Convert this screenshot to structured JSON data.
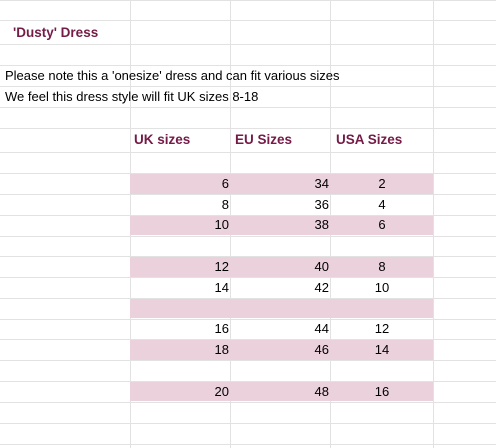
{
  "title": "'Dusty' Dress",
  "notes": [
    "Please note this a 'onesize' dress and can fit various sizes",
    "We feel this dress style will fit UK sizes 8-18"
  ],
  "headers": {
    "uk": "UK sizes",
    "eu": "EU Sizes",
    "usa": "USA Sizes"
  },
  "rows": [
    {
      "uk": "6",
      "eu": "34",
      "usa": "2"
    },
    {
      "uk": "8",
      "eu": "36",
      "usa": "4"
    },
    {
      "uk": "10",
      "eu": "38",
      "usa": "6"
    },
    {
      "uk": "12",
      "eu": "40",
      "usa": "8"
    },
    {
      "uk": "14",
      "eu": "42",
      "usa": "10"
    },
    {
      "uk": "16",
      "eu": "44",
      "usa": "12"
    },
    {
      "uk": "18",
      "eu": "46",
      "usa": "14"
    },
    {
      "uk": "20",
      "eu": "48",
      "usa": "16"
    }
  ],
  "colors": {
    "accent": "#741b47",
    "band": "#ead1dc",
    "grid": "#e2e2e2"
  }
}
